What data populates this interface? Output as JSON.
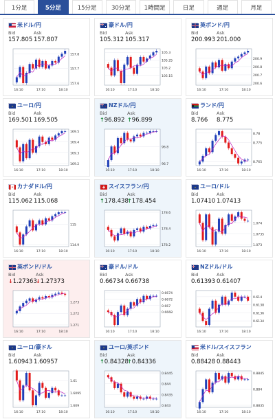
{
  "tabs": [
    {
      "label": "1分足",
      "active": false
    },
    {
      "label": "5分足",
      "active": true
    },
    {
      "label": "15分足",
      "active": false
    },
    {
      "label": "30分足",
      "active": false
    },
    {
      "label": "1時間足",
      "active": false
    },
    {
      "label": "日足",
      "active": false
    },
    {
      "label": "週足",
      "active": false
    },
    {
      "label": "月足",
      "active": false
    }
  ],
  "labels": {
    "bid": "Bid",
    "ask": "Ask"
  },
  "pairs": [
    {
      "name": "米ドル/円",
      "flag": "us",
      "trend": "",
      "bid": "157.805",
      "ask": "157.807",
      "chart": {
        "y": [
          157.64,
          157.71,
          157.6,
          157.67,
          157.73,
          157.7,
          157.76,
          157.71,
          157.75,
          157.7,
          157.72,
          157.75,
          157.74,
          157.78,
          157.8,
          157.82
        ],
        "ticks": [
          "157.8",
          "157.7",
          "157.6"
        ],
        "times": [
          "16:10",
          "17:10",
          "18:10"
        ]
      }
    },
    {
      "name": "豪ドル/円",
      "flag": "au",
      "trend": "",
      "bid": "105.312",
      "ask": "105.317",
      "chart": {
        "y": [
          105.2,
          105.15,
          105.25,
          105.18,
          105.1,
          105.22,
          105.27,
          105.2,
          105.16,
          105.22,
          105.27,
          105.24,
          105.26,
          105.28,
          105.3,
          105.31
        ],
        "ticks": [
          "105.3",
          "105.25",
          "105.2",
          "105.15"
        ],
        "times": [
          "16:10",
          "17:10",
          "18:10"
        ]
      }
    },
    {
      "name": "英ポンド/円",
      "flag": "gb",
      "trend": "",
      "bid": "200.993",
      "ask": "201.000",
      "chart": {
        "y": [
          200.74,
          200.66,
          200.8,
          200.72,
          200.85,
          200.79,
          200.88,
          200.75,
          200.83,
          200.78,
          200.86,
          200.9,
          200.92,
          200.95,
          200.97,
          200.99
        ],
        "ticks": [
          "200.9",
          "200.8",
          "200.7",
          "200.6"
        ],
        "times": [
          "16:10",
          "17:10",
          "18:10"
        ]
      }
    },
    {
      "name": "ユーロ/円",
      "flag": "eu",
      "trend": "",
      "bid": "169.501",
      "ask": "169.505",
      "chart": {
        "y": [
          169.35,
          169.22,
          169.38,
          169.25,
          169.42,
          169.3,
          169.36,
          169.45,
          169.4,
          169.38,
          169.44,
          169.42,
          169.46,
          169.48,
          169.5,
          169.5
        ],
        "ticks": [
          "169.5",
          "169.4",
          "169.3",
          "169.2"
        ],
        "times": [
          "16:10",
          "17:10",
          "18:10"
        ]
      }
    },
    {
      "name": "NZドル/円",
      "flag": "nz",
      "trend": "up",
      "bid": "96.892",
      "ask": "96.899",
      "chart": {
        "y": [
          96.72,
          96.8,
          96.76,
          96.85,
          96.82,
          96.88,
          96.84,
          96.83,
          96.86,
          96.87,
          96.86,
          96.88,
          96.88,
          96.89,
          96.89,
          96.89
        ],
        "ticks": [
          "96.8",
          "96.7"
        ],
        "times": [
          "16:10",
          "17:10",
          "18:10"
        ]
      }
    },
    {
      "name": "ランド/円",
      "flag": "za",
      "trend": "",
      "bid": "8.766",
      "ask": "8.775",
      "chart": {
        "y": [
          8.765,
          8.768,
          8.772,
          8.77,
          8.776,
          8.779,
          8.781,
          8.778,
          8.775,
          8.772,
          8.769,
          8.767,
          8.764,
          8.765,
          8.766,
          8.766
        ],
        "ticks": [
          "8.78",
          "8.775",
          "8.765"
        ],
        "times": [
          "16:10",
          "17:10",
          "18:10"
        ]
      }
    },
    {
      "name": "カナダドル/円",
      "flag": "ca",
      "trend": "",
      "bid": "115.062",
      "ask": "115.068",
      "chart": {
        "y": [
          114.96,
          114.9,
          114.95,
          114.99,
          115.02,
          114.97,
          115.0,
          115.02,
          115.0,
          115.03,
          115.02,
          115.04,
          115.05,
          115.06,
          115.06,
          115.06
        ],
        "ticks": [
          "115",
          "114.9"
        ],
        "times": [
          "16:10",
          "17:10",
          "18:10"
        ]
      }
    },
    {
      "name": "スイスフラン/円",
      "flag": "ch",
      "trend": "up",
      "bid": "178.438",
      "ask": "178.454",
      "chart": {
        "y": [
          178.38,
          178.3,
          178.25,
          178.34,
          178.4,
          178.33,
          178.36,
          178.3,
          178.38,
          178.4,
          178.36,
          178.42,
          178.4,
          178.43,
          178.44,
          178.44
        ],
        "ticks": [
          "178.6",
          "178.4",
          "178.2"
        ],
        "times": [
          "16:10",
          "17:10",
          "18:10"
        ]
      }
    },
    {
      "name": "ユーロ/ドル",
      "flag": "eu",
      "trend": "",
      "bid": "1.07410",
      "ask": "1.07413",
      "chart": {
        "y": [
          1.074,
          1.0732,
          1.0744,
          1.0738,
          1.073,
          1.0736,
          1.0742,
          1.0735,
          1.0739,
          1.0744,
          1.0741,
          1.0743,
          1.0745,
          1.0742,
          1.0741,
          1.0741
        ],
        "ticks": [
          "1.074",
          "1.0735",
          "1.073"
        ],
        "times": [
          "16:10",
          "17:10",
          "18:10"
        ]
      }
    },
    {
      "name": "英ポンド/ドル",
      "flag": "gb",
      "trend": "down",
      "bid": "1.27363",
      "ask": "1.27373",
      "chart": {
        "y": [
          1.2722,
          1.2726,
          1.2729,
          1.2731,
          1.2733,
          1.273,
          1.2732,
          1.2734,
          1.2733,
          1.2735,
          1.2734,
          1.2736,
          1.2737,
          1.2738,
          1.2737,
          1.2736
        ],
        "ticks": [
          "1.273",
          "1.272",
          "1.271"
        ],
        "times": [
          "16:10",
          "17:10",
          "18:10"
        ]
      }
    },
    {
      "name": "豪ドル/ドル",
      "flag": "au",
      "trend": "",
      "bid": "0.66734",
      "ask": "0.66738",
      "chart": {
        "y": [
          0.6668,
          0.6667,
          0.6664,
          0.6668,
          0.667,
          0.6667,
          0.6669,
          0.6671,
          0.667,
          0.6672,
          0.6671,
          0.6673,
          0.6672,
          0.6673,
          0.6673,
          0.6673
        ],
        "ticks": [
          "0.6674",
          "0.6672",
          "0.667",
          "0.6668"
        ],
        "times": [
          "16:10",
          "17:10",
          "18:10"
        ]
      }
    },
    {
      "name": "NZドル/ドル",
      "flag": "nz",
      "trend": "",
      "bid": "0.61393",
      "ask": "0.61407",
      "chart": {
        "y": [
          0.6136,
          0.6134,
          0.6133,
          0.6137,
          0.6139,
          0.6136,
          0.6138,
          0.614,
          0.6138,
          0.6139,
          0.6141,
          0.614,
          0.6139,
          0.614,
          0.614,
          0.6139
        ],
        "ticks": [
          "0.614",
          "0.6138",
          "0.6136",
          "0.6134"
        ],
        "times": [
          "16:10",
          "17:10",
          "18:10"
        ]
      }
    },
    {
      "name": "ユーロ/豪ドル",
      "flag": "eu",
      "trend": "",
      "bid": "1.60943",
      "ask": "1.60957",
      "chart": {
        "y": [
          1.61,
          1.6092,
          1.6098,
          1.6103,
          1.6096,
          1.609,
          1.6094,
          1.6099,
          1.6097,
          1.6093,
          1.6095,
          1.6097,
          1.6096,
          1.6094,
          1.6094,
          1.6094
        ],
        "ticks": [
          "1.61",
          "1.6095",
          "1.609"
        ],
        "times": [
          "16:10",
          "17:10",
          "18:10"
        ]
      }
    },
    {
      "name": "ユーロ/英ポンド",
      "flag": "eu",
      "trend": "up",
      "bid": "0.84328",
      "ask": "0.84336",
      "chart": {
        "y": [
          0.8443,
          0.8441,
          0.8438,
          0.844,
          0.8436,
          0.8434,
          0.8436,
          0.8434,
          0.8433,
          0.8434,
          0.8433,
          0.8433,
          0.8434,
          0.8433,
          0.8433,
          0.8433
        ],
        "ticks": [
          "0.8445",
          "0.844",
          "0.8435",
          "0.843"
        ],
        "times": [
          "16:10",
          "17:10",
          "18:10"
        ]
      }
    },
    {
      "name": "米ドル/スイスフラン",
      "flag": "us",
      "trend": "",
      "bid": "0.88428",
      "ask": "0.88443",
      "chart": {
        "y": [
          0.8836,
          0.884,
          0.8843,
          0.8839,
          0.8842,
          0.8845,
          0.8843,
          0.8844,
          0.8842,
          0.8845,
          0.8844,
          0.8843,
          0.8844,
          0.8843,
          0.8843,
          0.8843
        ],
        "ticks": [
          "0.8845",
          "0.884",
          "0.8835"
        ],
        "times": [
          "16:10",
          "17:10",
          "18:10"
        ]
      }
    }
  ],
  "colors": {
    "accent": "#2a4f9a",
    "title": "#2d56a7",
    "candle_up": "#1f3fb8",
    "candle_down": "#e21b1b",
    "ma": "#c01fc0",
    "arrow_up": "#1f8a3d",
    "arrow_down": "#d11a1a"
  }
}
